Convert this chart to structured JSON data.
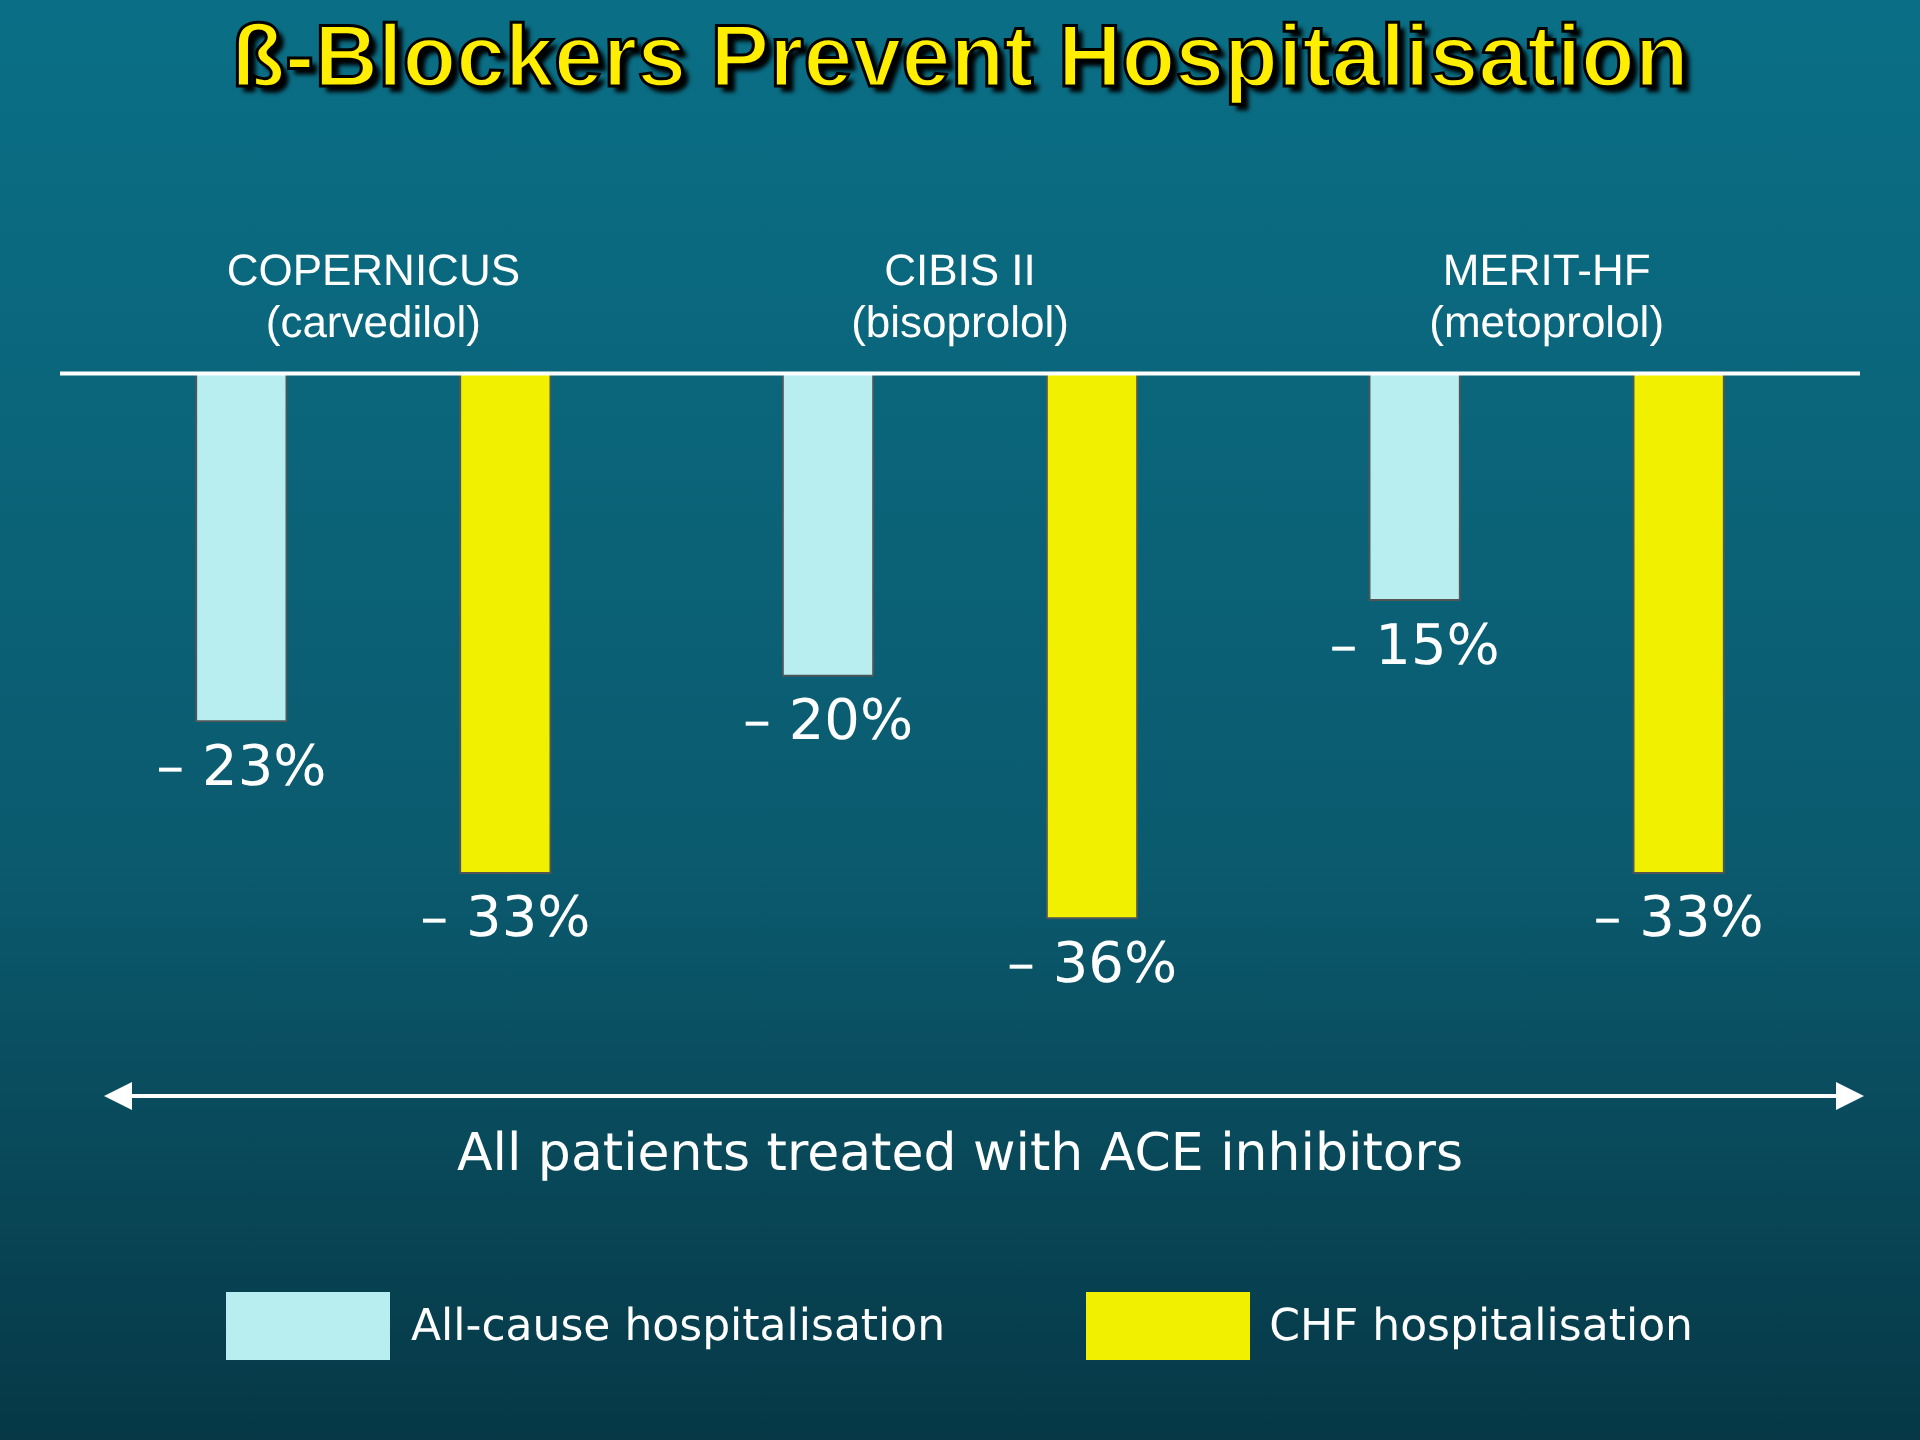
{
  "chart_data": {
    "type": "bar",
    "title": "ß-Blockers Prevent Hospitalisation",
    "categories": [
      "COPERNICUS (carvedilol)",
      "CIBIS II (bisoprolol)",
      "MERIT-HF (metoprolol)"
    ],
    "series": [
      {
        "name": "All-cause hospitalisation",
        "color": "#b8eef0",
        "values": [
          -23,
          -20,
          -15
        ],
        "value_labels": [
          "– 23%",
          "– 20%",
          "– 15%"
        ]
      },
      {
        "name": "CHF hospitalisation",
        "color": "#f0f000",
        "values": [
          -33,
          -36,
          -33
        ],
        "value_labels": [
          "– 33%",
          "– 36%",
          "– 33%"
        ]
      }
    ],
    "annotations": [
      "All patients treated with ACE inhibitors"
    ],
    "legend": "bottom",
    "grid": false
  }
}
